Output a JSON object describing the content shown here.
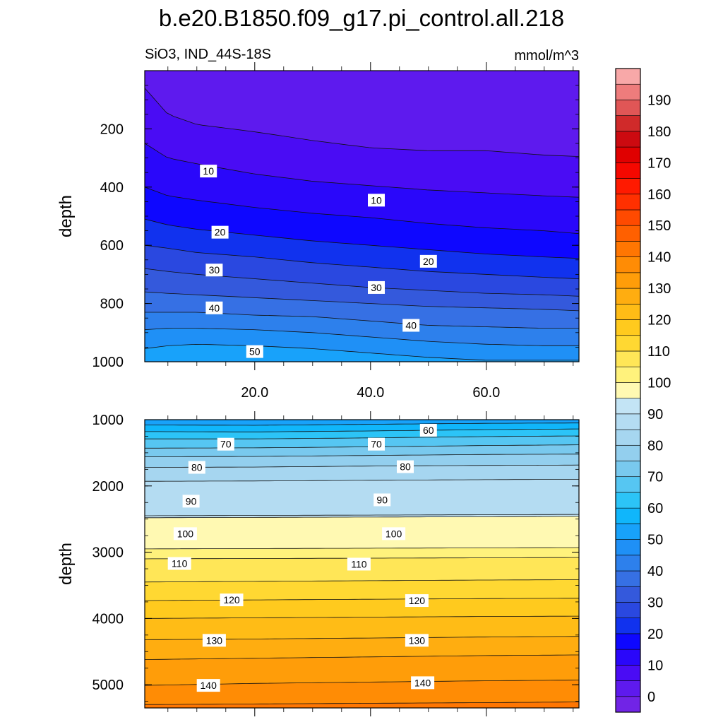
{
  "title": "b.e20.B1850.f09_g17.pi_control.all.218",
  "subtitle_left": "SiO3, IND_44S-18S",
  "subtitle_right": "mmol/m^3",
  "chart_data": [
    {
      "type": "heatmap",
      "panel": "upper",
      "ylabel": "depth",
      "xlabel": "",
      "xlim": [
        1,
        76
      ],
      "ylim": [
        0,
        1000
      ],
      "y_inverted": true,
      "x_ticks": [
        "20.0",
        "40.0",
        "60.0"
      ],
      "x_tick_values": [
        20,
        40,
        60
      ],
      "y_ticks": [
        "200",
        "400",
        "600",
        "800",
        "1000"
      ],
      "y_tick_values": [
        200,
        400,
        600,
        800,
        1000
      ],
      "contour_levels": [
        5,
        10,
        15,
        20,
        25,
        30,
        35,
        40,
        45,
        50
      ],
      "contours": [
        {
          "level": 5,
          "x": [
            1,
            5,
            10,
            20,
            30,
            40,
            50,
            60,
            70,
            76
          ],
          "depth": [
            60,
            150,
            185,
            210,
            240,
            265,
            275,
            275,
            290,
            295
          ]
        },
        {
          "level": 10,
          "x": [
            1,
            5,
            10,
            20,
            30,
            40,
            50,
            60,
            70,
            76
          ],
          "depth": [
            250,
            300,
            320,
            355,
            380,
            395,
            410,
            420,
            430,
            435
          ]
        },
        {
          "level": 15,
          "x": [
            1,
            5,
            10,
            20,
            30,
            40,
            50,
            60,
            70,
            76
          ],
          "depth": [
            400,
            430,
            445,
            470,
            490,
            505,
            525,
            540,
            550,
            560
          ]
        },
        {
          "level": 20,
          "x": [
            1,
            5,
            10,
            20,
            30,
            40,
            50,
            60,
            70,
            76
          ],
          "depth": [
            510,
            530,
            545,
            565,
            585,
            600,
            615,
            630,
            640,
            645
          ]
        },
        {
          "level": 25,
          "x": [
            1,
            5,
            10,
            20,
            30,
            40,
            50,
            60,
            70,
            76
          ],
          "depth": [
            600,
            610,
            625,
            640,
            660,
            675,
            690,
            700,
            710,
            715
          ]
        },
        {
          "level": 30,
          "x": [
            1,
            5,
            10,
            20,
            30,
            40,
            50,
            60,
            70,
            76
          ],
          "depth": [
            680,
            690,
            700,
            715,
            730,
            745,
            755,
            765,
            770,
            775
          ]
        },
        {
          "level": 35,
          "x": [
            1,
            5,
            10,
            20,
            30,
            40,
            50,
            60,
            70,
            76
          ],
          "depth": [
            760,
            765,
            770,
            780,
            790,
            800,
            810,
            815,
            820,
            825
          ]
        },
        {
          "level": 40,
          "x": [
            1,
            5,
            10,
            20,
            30,
            40,
            50,
            60,
            70,
            76
          ],
          "depth": [
            830,
            830,
            830,
            840,
            845,
            860,
            875,
            880,
            885,
            885
          ]
        },
        {
          "level": 45,
          "x": [
            1,
            5,
            10,
            20,
            30,
            40,
            50,
            60,
            70,
            76
          ],
          "depth": [
            890,
            885,
            885,
            890,
            900,
            915,
            930,
            940,
            945,
            945
          ]
        },
        {
          "level": 50,
          "x": [
            1,
            5,
            10,
            20,
            30,
            40,
            50,
            60,
            70,
            76
          ],
          "depth": [
            955,
            945,
            940,
            945,
            955,
            970,
            985,
            995,
            995,
            995
          ]
        }
      ],
      "contour_labels": [
        {
          "text": "10",
          "x": 12,
          "depth": 345
        },
        {
          "text": "10",
          "x": 41,
          "depth": 445
        },
        {
          "text": "20",
          "x": 14,
          "depth": 555
        },
        {
          "text": "20",
          "x": 50,
          "depth": 655
        },
        {
          "text": "30",
          "x": 13,
          "depth": 685
        },
        {
          "text": "30",
          "x": 41,
          "depth": 745
        },
        {
          "text": "40",
          "x": 13,
          "depth": 815
        },
        {
          "text": "40",
          "x": 47,
          "depth": 875
        },
        {
          "text": "50",
          "x": 20,
          "depth": 965
        }
      ]
    },
    {
      "type": "heatmap",
      "panel": "lower",
      "ylabel": "depth",
      "xlabel": "",
      "xlim": [
        1,
        76
      ],
      "ylim": [
        1000,
        5350
      ],
      "y_inverted": true,
      "y_ticks": [
        "1000",
        "2000",
        "3000",
        "4000",
        "5000"
      ],
      "y_tick_values": [
        1000,
        2000,
        3000,
        4000,
        5000
      ],
      "contour_levels": [
        55,
        60,
        65,
        70,
        75,
        80,
        85,
        90,
        95,
        100,
        105,
        110,
        115,
        120,
        125,
        130,
        135,
        140,
        145
      ],
      "contours": [
        {
          "level": 55,
          "x": [
            1,
            20,
            40,
            60,
            76
          ],
          "depth": [
            1080,
            1085,
            1070,
            1055,
            1050
          ]
        },
        {
          "level": 60,
          "x": [
            1,
            20,
            40,
            60,
            76
          ],
          "depth": [
            1180,
            1185,
            1170,
            1150,
            1140
          ]
        },
        {
          "level": 65,
          "x": [
            1,
            20,
            40,
            60,
            76
          ],
          "depth": [
            1290,
            1290,
            1275,
            1255,
            1245
          ]
        },
        {
          "level": 70,
          "x": [
            1,
            20,
            40,
            60,
            76
          ],
          "depth": [
            1430,
            1425,
            1410,
            1390,
            1380
          ]
        },
        {
          "level": 75,
          "x": [
            1,
            20,
            40,
            60,
            76
          ],
          "depth": [
            1560,
            1555,
            1540,
            1525,
            1520
          ]
        },
        {
          "level": 80,
          "x": [
            1,
            20,
            40,
            60,
            76
          ],
          "depth": [
            1720,
            1715,
            1700,
            1690,
            1685
          ]
        },
        {
          "level": 85,
          "x": [
            1,
            20,
            40,
            60,
            76
          ],
          "depth": [
            1930,
            1925,
            1915,
            1905,
            1900
          ]
        },
        {
          "level": 90,
          "x": [
            1,
            20,
            40,
            60,
            76
          ],
          "depth": [
            2450,
            2445,
            2440,
            2435,
            2430
          ]
        },
        {
          "level": 95,
          "x": [
            1,
            20,
            40,
            60,
            76
          ],
          "depth": [
            2480,
            2475,
            2470,
            2465,
            2460
          ]
        },
        {
          "level": 100,
          "x": [
            1,
            20,
            40,
            60,
            76
          ],
          "depth": [
            2950,
            2945,
            2940,
            2935,
            2930
          ]
        },
        {
          "level": 105,
          "x": [
            1,
            20,
            40,
            60,
            76
          ],
          "depth": [
            3100,
            3095,
            3090,
            3085,
            3080
          ]
        },
        {
          "level": 110,
          "x": [
            1,
            20,
            40,
            60,
            76
          ],
          "depth": [
            3450,
            3440,
            3430,
            3420,
            3415
          ]
        },
        {
          "level": 115,
          "x": [
            1,
            20,
            40,
            60,
            76
          ],
          "depth": [
            3730,
            3720,
            3710,
            3700,
            3695
          ]
        },
        {
          "level": 120,
          "x": [
            1,
            20,
            40,
            60,
            76
          ],
          "depth": [
            4000,
            3990,
            3980,
            3970,
            3965
          ]
        },
        {
          "level": 125,
          "x": [
            1,
            20,
            40,
            60,
            76
          ],
          "depth": [
            4320,
            4310,
            4295,
            4280,
            4270
          ]
        },
        {
          "level": 130,
          "x": [
            1,
            20,
            40,
            60,
            76
          ],
          "depth": [
            4620,
            4600,
            4580,
            4560,
            4550
          ]
        },
        {
          "level": 135,
          "x": [
            1,
            20,
            40,
            60,
            76
          ],
          "depth": [
            5010,
            4980,
            4960,
            4940,
            4930
          ]
        },
        {
          "level": 140,
          "x": [
            1,
            20,
            40,
            60,
            76
          ],
          "depth": [
            5300,
            5290,
            5280,
            5270,
            5260
          ]
        }
      ],
      "contour_labels": [
        {
          "text": "60",
          "x": 50,
          "depth": 1160
        },
        {
          "text": "70",
          "x": 15,
          "depth": 1370
        },
        {
          "text": "70",
          "x": 41,
          "depth": 1370
        },
        {
          "text": "80",
          "x": 10,
          "depth": 1720
        },
        {
          "text": "80",
          "x": 46,
          "depth": 1710
        },
        {
          "text": "90",
          "x": 9,
          "depth": 2230
        },
        {
          "text": "90",
          "x": 42,
          "depth": 2210
        },
        {
          "text": "100",
          "x": 8,
          "depth": 2720
        },
        {
          "text": "100",
          "x": 44,
          "depth": 2720
        },
        {
          "text": "110",
          "x": 7,
          "depth": 3170
        },
        {
          "text": "110",
          "x": 38,
          "depth": 3180
        },
        {
          "text": "120",
          "x": 16,
          "depth": 3720
        },
        {
          "text": "120",
          "x": 48,
          "depth": 3730
        },
        {
          "text": "130",
          "x": 13,
          "depth": 4330
        },
        {
          "text": "130",
          "x": 48,
          "depth": 4330
        },
        {
          "text": "140",
          "x": 12,
          "depth": 5010
        },
        {
          "text": "140",
          "x": 49,
          "depth": 4970
        }
      ]
    }
  ],
  "colorbar": {
    "labels": [
      "0",
      "10",
      "20",
      "30",
      "40",
      "50",
      "60",
      "70",
      "80",
      "90",
      "100",
      "110",
      "120",
      "130",
      "140",
      "150",
      "160",
      "170",
      "180",
      "190"
    ],
    "label_values": [
      0,
      10,
      20,
      30,
      40,
      50,
      60,
      70,
      80,
      90,
      100,
      110,
      120,
      130,
      140,
      150,
      160,
      170,
      180,
      190
    ],
    "levels": [
      -5,
      0,
      5,
      10,
      15,
      20,
      25,
      30,
      35,
      40,
      45,
      50,
      55,
      60,
      65,
      70,
      75,
      80,
      85,
      90,
      95,
      100,
      105,
      110,
      115,
      120,
      125,
      130,
      135,
      140,
      145,
      150,
      155,
      160,
      165,
      170,
      175,
      180,
      185,
      190,
      195,
      200
    ],
    "colors": [
      "#7124e6",
      "#5e1aee",
      "#4a0cf4",
      "#2a07fa",
      "#0e07ff",
      "#1132ee",
      "#2a48e0",
      "#3459dc",
      "#3670e4",
      "#2d80ec",
      "#1f90f6",
      "#18a2fa",
      "#10b6fb",
      "#2cc4f7",
      "#56c6f2",
      "#79c9ee",
      "#93cfee",
      "#a6d6f0",
      "#b4dcf2",
      "#c3e4f5",
      "#fff9b2",
      "#fff27c",
      "#ffe657",
      "#ffd832",
      "#ffca1e",
      "#ffbc16",
      "#ffad10",
      "#ff9d09",
      "#ff8c05",
      "#ff7602",
      "#ff6000",
      "#ff4a00",
      "#ff3000",
      "#ff1a00",
      "#f50800",
      "#e00000",
      "#cc0a10",
      "#d02a2a",
      "#e05656",
      "#ee7c7c",
      "#f8a8a8"
    ]
  }
}
